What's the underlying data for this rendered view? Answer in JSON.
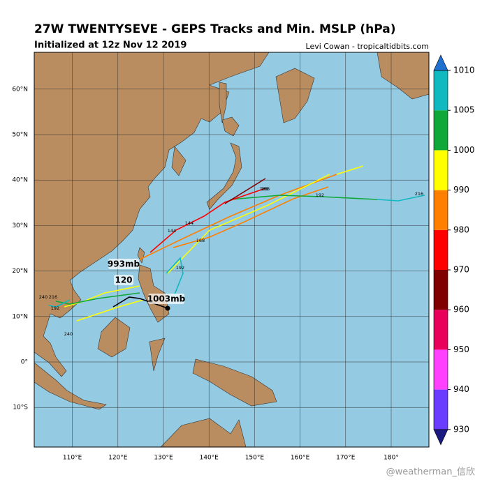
{
  "title": "27W TWENTYSEVE - GEPS Tracks and Min. MSLP (hPa)",
  "subtitle": "Initialized at 12z Nov 12 2019",
  "credit": "Levi Cowan - tropicaltidbits.com",
  "map": {
    "lon_ticks": [
      {
        "value": 110,
        "label": "110°E"
      },
      {
        "value": 120,
        "label": "120°E"
      },
      {
        "value": 130,
        "label": "130°E"
      },
      {
        "value": 140,
        "label": "140°E"
      },
      {
        "value": 150,
        "label": "150°E"
      },
      {
        "value": 160,
        "label": "160°E"
      },
      {
        "value": 170,
        "label": "170°E"
      },
      {
        "value": 180,
        "label": "180°"
      }
    ],
    "lat_ticks": [
      {
        "value": 60,
        "label": "60°N"
      },
      {
        "value": 50,
        "label": "50°N"
      },
      {
        "value": 40,
        "label": "40°N"
      },
      {
        "value": 30,
        "label": "30°N"
      },
      {
        "value": 20,
        "label": "20°N"
      },
      {
        "value": 10,
        "label": "10°N"
      },
      {
        "value": 0,
        "label": "0°"
      },
      {
        "value": -10,
        "label": "10°S"
      }
    ],
    "annotations": [
      "993mb",
      "120",
      "1003mb"
    ],
    "track_labels": [
      "168",
      "168",
      "192",
      "216",
      "144",
      "144",
      "168",
      "192",
      "240",
      "240",
      "216",
      "192"
    ]
  },
  "colorbar": {
    "levels": [
      930,
      940,
      950,
      960,
      970,
      980,
      990,
      1000,
      1005,
      1010
    ],
    "colors": [
      "#6a3cff",
      "#ff40ff",
      "#e8005a",
      "#800000",
      "#ff0000",
      "#ff7f00",
      "#ffff00",
      "#10a838",
      "#10b8c0"
    ],
    "extend_colors": [
      "#1a1a80",
      "#2070d0"
    ]
  },
  "watermark": "@weatherman_信欣"
}
